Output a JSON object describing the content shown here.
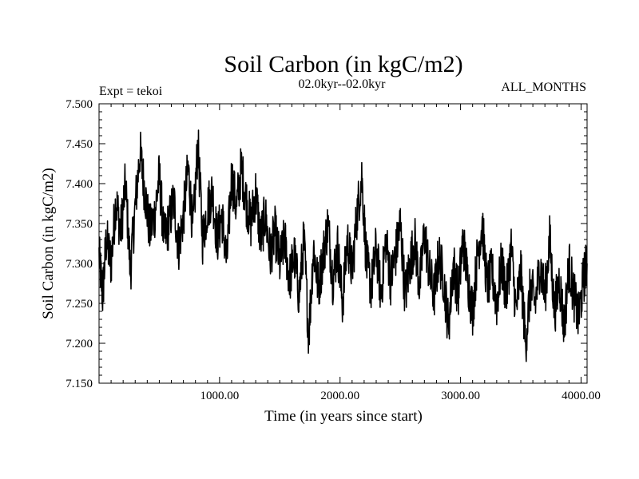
{
  "chart_data": {
    "type": "line",
    "title": "Soil Carbon (in kgC/m2)",
    "subtitle": "02.0kyr--02.0kyr",
    "annotation_left": "Expt = tekoi",
    "annotation_right": "ALL_MONTHS",
    "xlabel": "Time (in years since start)",
    "ylabel": "Soil Carbon (in kgC/m2)",
    "xlim": [
      0,
      4050
    ],
    "ylim": [
      7.15,
      7.5
    ],
    "x_ticks": [
      1000,
      2000,
      3000,
      4000
    ],
    "x_tick_labels": [
      "1000.00",
      "2000.00",
      "3000.00",
      "4000.00"
    ],
    "y_ticks": [
      7.15,
      7.2,
      7.25,
      7.3,
      7.35,
      7.4,
      7.45,
      7.5
    ],
    "y_tick_labels": [
      "7.150",
      "7.200",
      "7.250",
      "7.300",
      "7.350",
      "7.400",
      "7.450",
      "7.500"
    ],
    "grid": false,
    "line_color": "#000000",
    "series": [
      {
        "x": [
          0,
          30,
          60,
          100,
          140,
          180,
          220,
          260,
          300,
          340,
          380,
          420,
          460,
          500,
          540,
          580,
          620,
          660,
          700,
          740,
          780,
          820,
          860,
          900,
          940,
          980,
          1020,
          1060,
          1100,
          1140,
          1180,
          1220,
          1260,
          1300,
          1340,
          1380,
          1420,
          1460,
          1500,
          1540,
          1580,
          1620,
          1660,
          1700,
          1740,
          1780,
          1820,
          1860,
          1900,
          1940,
          1980,
          2020,
          2060,
          2100,
          2140,
          2180,
          2220,
          2260,
          2300,
          2340,
          2380,
          2420,
          2460,
          2500,
          2540,
          2580,
          2620,
          2660,
          2700,
          2740,
          2780,
          2820,
          2860,
          2900,
          2940,
          2980,
          3020,
          3060,
          3100,
          3140,
          3180,
          3220,
          3260,
          3300,
          3340,
          3380,
          3420,
          3460,
          3500,
          3540,
          3580,
          3620,
          3660,
          3700,
          3740,
          3780,
          3820,
          3860,
          3900,
          3940,
          3980,
          4020,
          4050
        ],
        "values": [
          7.31,
          7.26,
          7.33,
          7.3,
          7.38,
          7.34,
          7.4,
          7.29,
          7.37,
          7.44,
          7.39,
          7.34,
          7.36,
          7.41,
          7.33,
          7.35,
          7.38,
          7.32,
          7.36,
          7.42,
          7.34,
          7.45,
          7.33,
          7.37,
          7.39,
          7.33,
          7.36,
          7.3,
          7.41,
          7.37,
          7.42,
          7.38,
          7.35,
          7.39,
          7.33,
          7.36,
          7.31,
          7.34,
          7.3,
          7.33,
          7.28,
          7.31,
          7.26,
          7.33,
          7.21,
          7.32,
          7.27,
          7.31,
          7.35,
          7.28,
          7.32,
          7.25,
          7.33,
          7.29,
          7.36,
          7.41,
          7.3,
          7.27,
          7.32,
          7.26,
          7.33,
          7.28,
          7.31,
          7.35,
          7.26,
          7.3,
          7.33,
          7.27,
          7.34,
          7.29,
          7.26,
          7.31,
          7.28,
          7.22,
          7.3,
          7.26,
          7.33,
          7.28,
          7.24,
          7.31,
          7.35,
          7.27,
          7.29,
          7.25,
          7.3,
          7.26,
          7.32,
          7.24,
          7.29,
          7.2,
          7.27,
          7.25,
          7.3,
          7.26,
          7.33,
          7.24,
          7.28,
          7.22,
          7.3,
          7.26,
          7.23,
          7.28,
          7.3
        ]
      }
    ]
  }
}
